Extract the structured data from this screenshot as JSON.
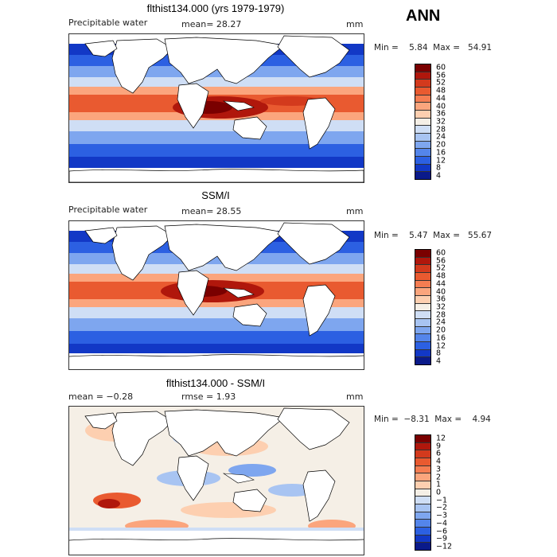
{
  "season": "ANN",
  "panels": [
    {
      "title": "flthist134.000 (yrs 1979-1979)",
      "variable": "Precipitable water",
      "mean_text": "mean=  28.27",
      "unit": "mm",
      "minmax_text": "Min =    5.84  Max =   54.91",
      "levels": [
        "60",
        "56",
        "52",
        "48",
        "44",
        "40",
        "36",
        "32",
        "28",
        "24",
        "20",
        "16",
        "12",
        "8",
        "4"
      ],
      "colors": [
        "#7a0000",
        "#b0170c",
        "#d33a1d",
        "#e95a30",
        "#f57d52",
        "#fba57d",
        "#fdcfb0",
        "#f5efe6",
        "#cfdef5",
        "#a8c4f2",
        "#7ea6ef",
        "#5485ea",
        "#2c60e2",
        "#1238c6",
        "#0a1a8a"
      ]
    },
    {
      "title": "SSM/I",
      "variable": "Precipitable water",
      "mean_text": "mean=  28.55",
      "unit": "mm",
      "minmax_text": "Min =    5.47  Max =   55.67",
      "levels": [
        "60",
        "56",
        "52",
        "48",
        "44",
        "40",
        "36",
        "32",
        "28",
        "24",
        "20",
        "16",
        "12",
        "8",
        "4"
      ],
      "colors": [
        "#7a0000",
        "#b0170c",
        "#d33a1d",
        "#e95a30",
        "#f57d52",
        "#fba57d",
        "#fdcfb0",
        "#f5efe6",
        "#cfdef5",
        "#a8c4f2",
        "#7ea6ef",
        "#5485ea",
        "#2c60e2",
        "#1238c6",
        "#0a1a8a"
      ]
    },
    {
      "title": "flthist134.000 - SSM/I",
      "mean_text": "mean =   −0.28",
      "rmse_text": "rmse =    1.93",
      "unit": "mm",
      "minmax_text": "Min =  −8.31  Max =    4.94",
      "levels": [
        "12",
        "9",
        "6",
        "4",
        "3",
        "2",
        "1",
        "0",
        "−1",
        "−2",
        "−3",
        "−4",
        "−6",
        "−9",
        "−12"
      ],
      "colors": [
        "#7a0000",
        "#b0170c",
        "#d33a1d",
        "#e95a30",
        "#f57d52",
        "#fba57d",
        "#fdcfb0",
        "#f5efe6",
        "#cfdef5",
        "#a8c4f2",
        "#7ea6ef",
        "#5485ea",
        "#2c60e2",
        "#1238c6",
        "#0a1a8a"
      ]
    }
  ]
}
